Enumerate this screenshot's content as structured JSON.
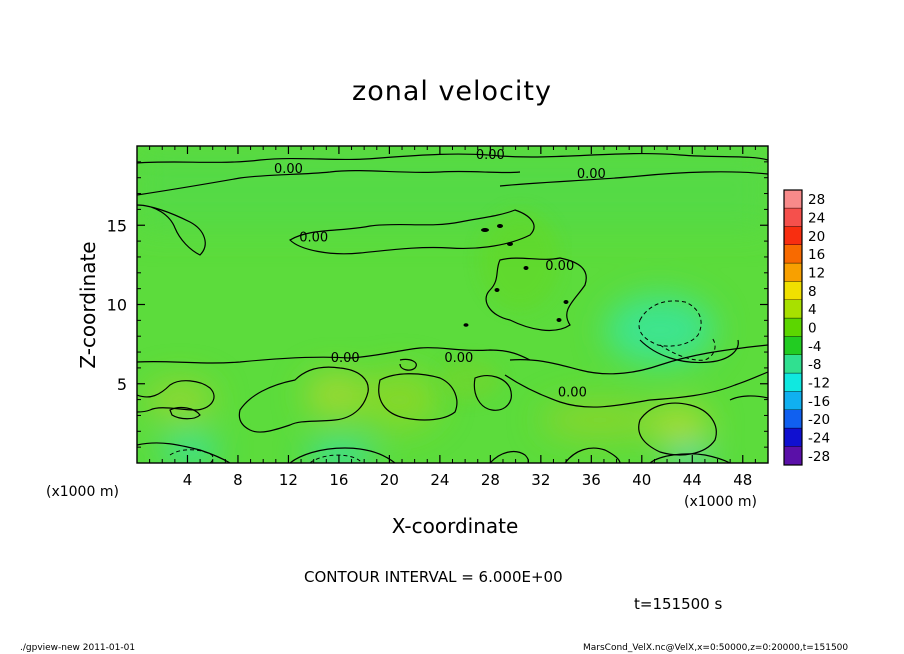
{
  "title": "zonal velocity",
  "footer": {
    "left": "./gpview-new  2011-01-01",
    "right": "MarsCond_VelX.nc@VelX,x=0:50000,z=0:20000,t=151500"
  },
  "contour_interval": "CONTOUR INTERVAL = 6.000E+00",
  "time_label": "t=151500 s",
  "chart_data": {
    "type": "heatmap",
    "title": "zonal velocity",
    "xlabel": "X-coordinate",
    "ylabel": "Z-coordinate",
    "x_unit": "(x1000 m)",
    "x_ticks": [
      4,
      8,
      12,
      16,
      20,
      24,
      28,
      32,
      36,
      40,
      44,
      48
    ],
    "y_ticks": [
      5,
      10,
      15
    ],
    "xlim": [
      0,
      50
    ],
    "ylim": [
      0,
      20
    ],
    "colorbar": {
      "levels": [
        28,
        24,
        20,
        16,
        12,
        8,
        4,
        0,
        -4,
        -8,
        -12,
        -16,
        -20,
        -24,
        -28
      ],
      "colors": [
        "#f88a8a",
        "#f5504c",
        "#f82e10",
        "#f86a00",
        "#f8a000",
        "#f0e000",
        "#a8e000",
        "#5cd600",
        "#22cc22",
        "#30e090",
        "#10e8e0",
        "#10b0f0",
        "#1060f0",
        "#1010d0",
        "#5a10a8"
      ]
    },
    "contour_labels": [
      {
        "text": "0.00",
        "x": 28,
        "z": 19.5
      },
      {
        "text": "0.00",
        "x": 36,
        "z": 18.3
      },
      {
        "text": "0.00",
        "x": 12,
        "z": 18.6
      },
      {
        "text": "0.00",
        "x": 14,
        "z": 14.3
      },
      {
        "text": "0.00",
        "x": 33.5,
        "z": 12.5
      },
      {
        "text": "0.00",
        "x": 16.5,
        "z": 6.7
      },
      {
        "text": "0.00",
        "x": 25.5,
        "z": 6.7
      },
      {
        "text": "0.00",
        "x": 34.5,
        "z": 4.5
      }
    ]
  }
}
